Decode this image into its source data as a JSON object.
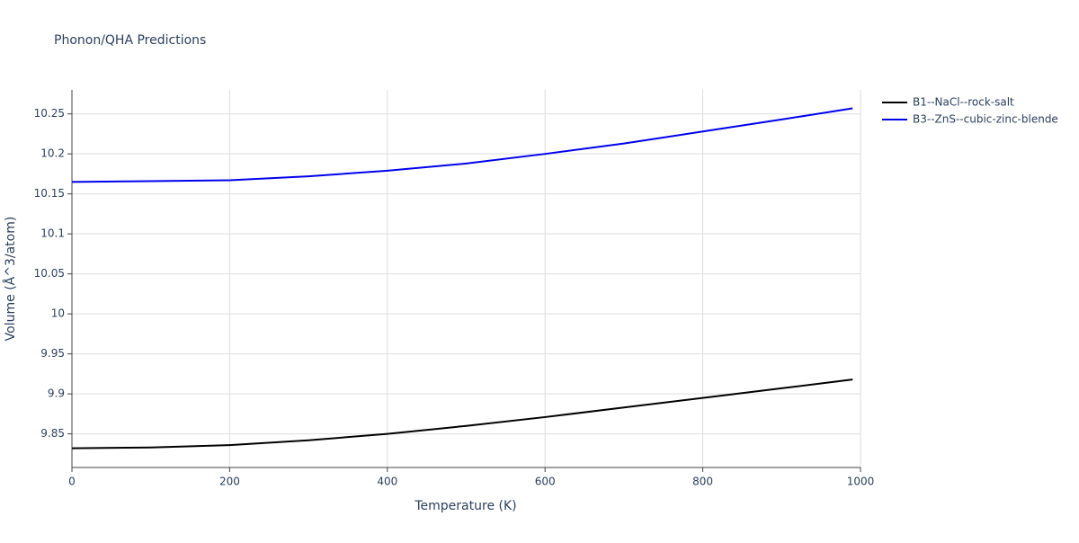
{
  "chart_data": {
    "type": "line",
    "title": "Phonon/QHA Predictions",
    "x_label": "Temperature (K)",
    "y_label": "Volume (Å^3/atom)",
    "x": [
      0,
      100,
      200,
      300,
      400,
      500,
      600,
      700,
      800,
      900,
      990
    ],
    "series": [
      {
        "name": "B1--NaCl--rock-salt",
        "color": "#000000",
        "values": [
          9.832,
          9.833,
          9.836,
          9.842,
          9.85,
          9.86,
          9.871,
          9.883,
          9.895,
          9.907,
          9.918
        ]
      },
      {
        "name": "B3--ZnS--cubic-zinc-blende",
        "color": "#0000ee",
        "values": [
          10.165,
          10.166,
          10.167,
          10.172,
          10.179,
          10.188,
          10.2,
          10.213,
          10.228,
          10.243,
          10.257
        ]
      }
    ],
    "xlim": [
      0,
      1000
    ],
    "xticks": [
      0,
      200,
      400,
      600,
      800,
      1000
    ],
    "ylim": [
      9.808,
      10.28
    ],
    "yticks": [
      9.85,
      9.9,
      9.95,
      10,
      10.05,
      10.1,
      10.15,
      10.2,
      10.25
    ],
    "grid": true,
    "legend": "right"
  }
}
